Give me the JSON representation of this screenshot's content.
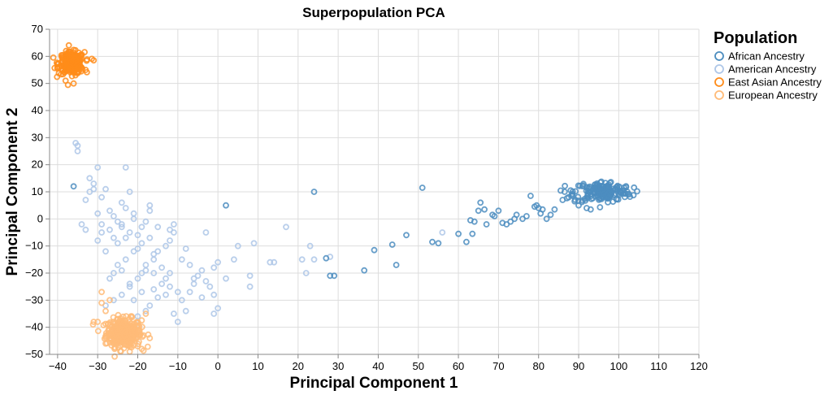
{
  "chart_data": {
    "type": "scatter",
    "title": "Superpopulation PCA",
    "xlabel": "Principal Component 1",
    "ylabel": "Principal Component 2",
    "xlim": [
      -42,
      120
    ],
    "ylim": [
      -50,
      70
    ],
    "x_ticks": [
      -40,
      -30,
      -20,
      -10,
      0,
      10,
      20,
      30,
      40,
      50,
      60,
      70,
      80,
      90,
      100,
      110,
      120
    ],
    "y_ticks": [
      -50,
      -40,
      -30,
      -20,
      -10,
      0,
      10,
      20,
      30,
      40,
      50,
      60,
      70
    ],
    "x_tick_labels": [
      "−40",
      "−30",
      "−20",
      "−10",
      "0",
      "10",
      "20",
      "30",
      "40",
      "50",
      "60",
      "70",
      "80",
      "90",
      "100",
      "110",
      "120"
    ],
    "y_tick_labels": [
      "−50",
      "−40",
      "−30",
      "−20",
      "−10",
      "0",
      "10",
      "20",
      "30",
      "40",
      "50",
      "60",
      "70"
    ],
    "grid": true,
    "legend": {
      "title": "Population",
      "position": "right"
    },
    "series": [
      {
        "name": "African Ancestry",
        "color": "#4c8dbf",
        "cluster": {
          "center": [
            96,
            10
          ],
          "spread": [
            3.6,
            2.0
          ],
          "count": 170
        },
        "points": [
          [
            -36,
            12
          ],
          [
            2,
            5
          ],
          [
            24,
            10
          ],
          [
            51,
            11.5
          ],
          [
            27,
            -14.5
          ],
          [
            28,
            -21
          ],
          [
            29,
            -21
          ],
          [
            36.5,
            -19
          ],
          [
            39,
            -11.5
          ],
          [
            43.5,
            -9.5
          ],
          [
            44.5,
            -17
          ],
          [
            47,
            -6
          ],
          [
            53.5,
            -8.5
          ],
          [
            55,
            -9
          ],
          [
            60,
            -5.5
          ],
          [
            62,
            -8.5
          ],
          [
            63.5,
            -5.5
          ],
          [
            63,
            -0.5
          ],
          [
            64,
            -1
          ],
          [
            65,
            3
          ],
          [
            65.5,
            6
          ],
          [
            66.5,
            3.5
          ],
          [
            67,
            -2
          ],
          [
            68.5,
            1.5
          ],
          [
            69,
            1
          ],
          [
            70,
            3
          ],
          [
            71,
            -1.5
          ],
          [
            72,
            -2
          ],
          [
            73,
            -1
          ],
          [
            74,
            0
          ],
          [
            74.5,
            1.5
          ],
          [
            76,
            0
          ],
          [
            77,
            1
          ],
          [
            78,
            8.5
          ],
          [
            79,
            4.5
          ],
          [
            79.5,
            5
          ],
          [
            80,
            4
          ],
          [
            80.5,
            2
          ],
          [
            81,
            3.5
          ],
          [
            82,
            0
          ],
          [
            83,
            1.5
          ],
          [
            84,
            3.5
          ],
          [
            86,
            7
          ],
          [
            86.5,
            10
          ],
          [
            87.5,
            8
          ],
          [
            88,
            10.5
          ],
          [
            88.5,
            8.5
          ],
          [
            89,
            6.5
          ],
          [
            90,
            5
          ],
          [
            92,
            4
          ],
          [
            93,
            3.5
          ]
        ]
      },
      {
        "name": "American Ancestry",
        "color": "#aec7e8",
        "points": [
          [
            -35.5,
            28
          ],
          [
            -35,
            27
          ],
          [
            -35,
            25
          ],
          [
            -32,
            15
          ],
          [
            -31,
            13
          ],
          [
            -30,
            19
          ],
          [
            -31,
            11
          ],
          [
            -32,
            10
          ],
          [
            -33,
            7
          ],
          [
            -30,
            2
          ],
          [
            -29,
            8
          ],
          [
            -28,
            11
          ],
          [
            -27,
            3
          ],
          [
            -29,
            -2
          ],
          [
            -29,
            -5
          ],
          [
            -27,
            -4
          ],
          [
            -26,
            -7
          ],
          [
            -25,
            -1
          ],
          [
            -26,
            1
          ],
          [
            -24,
            -2
          ],
          [
            -24,
            -3
          ],
          [
            -23,
            19
          ],
          [
            -23,
            4
          ],
          [
            -22,
            10
          ],
          [
            -24,
            6
          ],
          [
            -21,
            0
          ],
          [
            -21,
            2
          ],
          [
            -22,
            -5
          ],
          [
            -23,
            -7
          ],
          [
            -20,
            -11
          ],
          [
            -18,
            -1
          ],
          [
            -19,
            -3
          ],
          [
            -17,
            5
          ],
          [
            -17,
            3
          ],
          [
            -15,
            -3
          ],
          [
            -12,
            -4
          ],
          [
            -11,
            -5
          ],
          [
            -11,
            -2
          ],
          [
            -12,
            -8
          ],
          [
            -13,
            -10
          ],
          [
            -15,
            -12
          ],
          [
            -16,
            -15
          ],
          [
            -18,
            -17
          ],
          [
            -19,
            -20
          ],
          [
            -20,
            -22
          ],
          [
            -22,
            -24
          ],
          [
            -24,
            -28
          ],
          [
            -26,
            -30
          ],
          [
            -28,
            -32
          ],
          [
            -27,
            -22
          ],
          [
            -25,
            -17
          ],
          [
            -23,
            -15
          ],
          [
            -21,
            -12
          ],
          [
            -19,
            -9
          ],
          [
            -17,
            -7
          ],
          [
            -16,
            -13
          ],
          [
            -14,
            -18
          ],
          [
            -13,
            -22
          ],
          [
            -12,
            -25
          ],
          [
            -10,
            -27
          ],
          [
            -9,
            -30
          ],
          [
            -8,
            -34
          ],
          [
            -7,
            -27
          ],
          [
            -6,
            -22
          ],
          [
            -5,
            -21
          ],
          [
            -4,
            -19
          ],
          [
            -3,
            -23
          ],
          [
            -2,
            -25
          ],
          [
            -1,
            -28
          ],
          [
            0,
            -33
          ],
          [
            -1,
            -35
          ],
          [
            -3,
            -5
          ],
          [
            -1,
            -18
          ],
          [
            0,
            -16
          ],
          [
            2,
            -22
          ],
          [
            4,
            -15
          ],
          [
            5,
            -10
          ],
          [
            8,
            -21
          ],
          [
            8,
            -25
          ],
          [
            9,
            -9
          ],
          [
            13,
            -16
          ],
          [
            14,
            -16
          ],
          [
            17,
            -3
          ],
          [
            21,
            -15
          ],
          [
            22,
            -20
          ],
          [
            23,
            -10
          ],
          [
            24,
            -15
          ],
          [
            28,
            -14
          ],
          [
            56,
            -5
          ],
          [
            -34,
            -2
          ],
          [
            -33,
            -4
          ],
          [
            -30,
            -8
          ],
          [
            -28,
            -12
          ],
          [
            -25,
            -9
          ],
          [
            -20,
            -6
          ],
          [
            -18,
            -19
          ],
          [
            -16,
            -26
          ],
          [
            -14,
            -24
          ],
          [
            -13,
            -28
          ],
          [
            -15,
            -29
          ],
          [
            -17,
            -32
          ],
          [
            -18,
            -34
          ],
          [
            -20,
            -36
          ],
          [
            -22,
            -25
          ],
          [
            -26,
            -20
          ],
          [
            -24,
            -19
          ],
          [
            -11,
            -35
          ],
          [
            -10,
            -38
          ],
          [
            -9,
            -15
          ],
          [
            -7,
            -17
          ],
          [
            -8,
            -11
          ],
          [
            -6,
            -24
          ],
          [
            -4,
            -29
          ],
          [
            -12,
            -20
          ],
          [
            -16,
            -20
          ],
          [
            -19,
            -27
          ],
          [
            -21,
            -30
          ]
        ]
      },
      {
        "name": "East Asian Ancestry",
        "color": "#ff8c1a",
        "cluster": {
          "center": [
            -36.5,
            57.5
          ],
          "spread": [
            1.6,
            2.0
          ],
          "count": 260
        },
        "points": [
          [
            -31,
            58.5
          ],
          [
            -36,
            50
          ],
          [
            -38,
            51
          ],
          [
            -33,
            55
          ],
          [
            -40,
            56
          ]
        ]
      },
      {
        "name": "European Ancestry",
        "color": "#ffbb78",
        "cluster": {
          "center": [
            -23.5,
            -42
          ],
          "spread": [
            2.2,
            2.6
          ],
          "count": 320
        },
        "points": [
          [
            -29,
            -27
          ],
          [
            -30,
            -38
          ],
          [
            -31,
            -38
          ],
          [
            -29,
            -31
          ],
          [
            -28,
            -34
          ],
          [
            -27,
            -30
          ],
          [
            -19,
            -48
          ],
          [
            -20,
            -47
          ],
          [
            -17,
            -44
          ],
          [
            -18,
            -35
          ],
          [
            -26,
            -46
          ],
          [
            -22,
            -49
          ],
          [
            -28,
            -46
          ]
        ]
      }
    ]
  }
}
